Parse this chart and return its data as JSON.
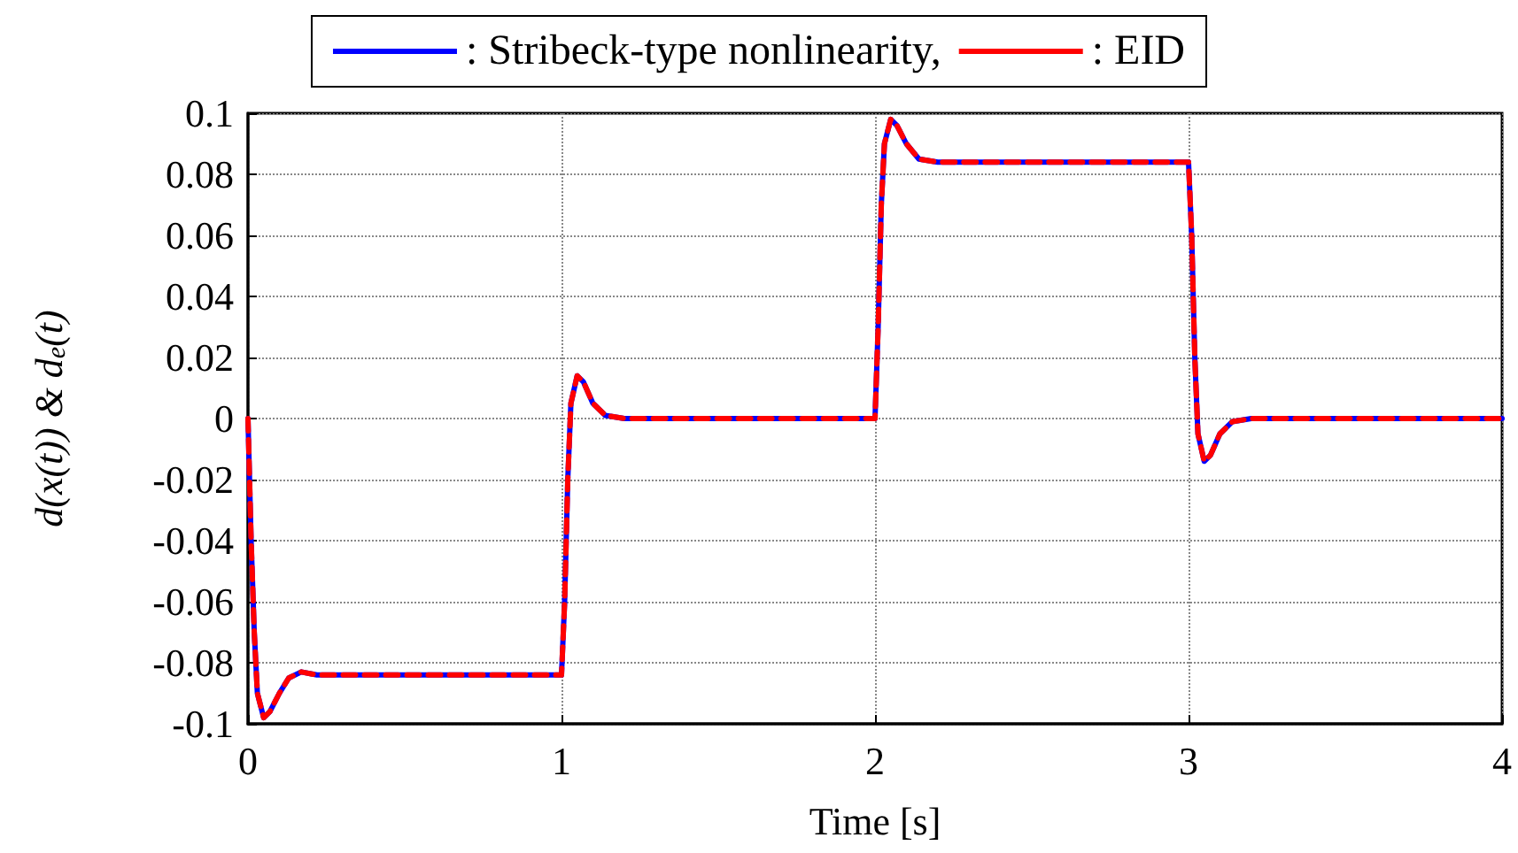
{
  "chart_data": {
    "type": "line",
    "xlabel": "Time [s]",
    "ylabel": "d(x(t)) & d$_{e}$(t)",
    "x": [
      0,
      0.01,
      0.02,
      0.03,
      0.05,
      0.07,
      0.1,
      0.13,
      0.17,
      0.22,
      1.0,
      1.01,
      1.02,
      1.03,
      1.05,
      1.07,
      1.1,
      1.14,
      1.2,
      2.0,
      2.01,
      2.02,
      2.03,
      2.05,
      2.07,
      2.1,
      2.14,
      2.2,
      3.0,
      3.01,
      3.02,
      3.03,
      3.05,
      3.07,
      3.1,
      3.14,
      3.2,
      4
    ],
    "series": [
      {
        "name": ": Stribeck-type nonlinearity,",
        "color": "#0000ff",
        "line_style": "solid",
        "values": [
          0,
          -0.04,
          -0.07,
          -0.09,
          -0.098,
          -0.096,
          -0.09,
          -0.085,
          -0.083,
          -0.084,
          -0.084,
          -0.06,
          -0.02,
          0.005,
          0.014,
          0.012,
          0.005,
          0.001,
          0,
          0,
          0.03,
          0.07,
          0.09,
          0.098,
          0.096,
          0.09,
          0.085,
          0.084,
          0.084,
          0.06,
          0.02,
          -0.005,
          -0.014,
          -0.012,
          -0.005,
          -0.001,
          0,
          0
        ]
      },
      {
        "name": ": EID",
        "color": "#ff0000",
        "line_style": "dashed",
        "values": [
          0,
          -0.04,
          -0.07,
          -0.09,
          -0.098,
          -0.096,
          -0.09,
          -0.085,
          -0.083,
          -0.084,
          -0.084,
          -0.06,
          -0.02,
          0.005,
          0.014,
          0.012,
          0.005,
          0.001,
          0,
          0,
          0.03,
          0.07,
          0.09,
          0.098,
          0.096,
          0.09,
          0.085,
          0.084,
          0.084,
          0.06,
          0.02,
          -0.005,
          -0.014,
          -0.012,
          -0.005,
          -0.001,
          0,
          0
        ]
      }
    ],
    "xlim": [
      0,
      4
    ],
    "xticks": [
      0,
      1,
      2,
      3,
      4
    ],
    "ylim": [
      -0.1,
      0.1
    ],
    "yticks": [
      -0.1,
      -0.08,
      -0.06,
      -0.04,
      -0.02,
      0,
      0.02,
      0.04,
      0.06,
      0.08,
      0.1
    ],
    "grid": true,
    "legend": "top",
    "marker": "none"
  }
}
